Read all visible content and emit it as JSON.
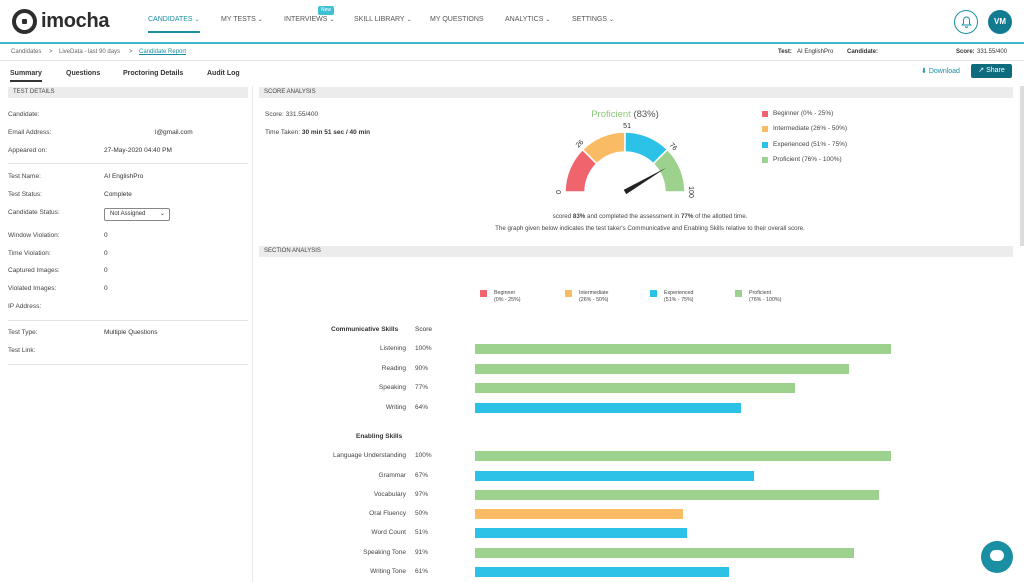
{
  "brand": {
    "name": "imocha"
  },
  "nav": {
    "items": [
      {
        "label": "CANDIDATES",
        "active": true
      },
      {
        "label": "MY TESTS"
      },
      {
        "label": "INTERVIEWS",
        "badge": "New"
      },
      {
        "label": "SKILL LIBRARY"
      },
      {
        "label": "MY QUESTIONS"
      },
      {
        "label": "ANALYTICS"
      },
      {
        "label": "SETTINGS"
      }
    ],
    "chevron": "⌄"
  },
  "user": {
    "initials": "VM"
  },
  "breadcrumb": {
    "items": [
      "Candidates",
      ">",
      "LiveData - last 90 days",
      ">",
      "Candidate Report"
    ]
  },
  "header_info": {
    "test_label": "Test:",
    "test_value": "AI EnglishPro",
    "candidate_label": "Candidate:",
    "score_label": "Score:",
    "score_value": "331.55/400"
  },
  "tabs": [
    "Summary",
    "Questions",
    "Proctoring Details",
    "Audit Log"
  ],
  "actions": {
    "download": "Download",
    "share": "Share"
  },
  "test_details": {
    "heading": "TEST DETAILS",
    "rows": [
      {
        "label": "Candidate:",
        "value": ""
      },
      {
        "label": "Email Address:",
        "value": "l@gmail.com"
      },
      {
        "label": "Appeared on:",
        "value": "27-May-2020 04:40 PM"
      },
      {
        "label": "Test Name:",
        "value": "AI EnglishPro"
      },
      {
        "label": "Test Status:",
        "value": "Complete"
      },
      {
        "label": "Candidate Status:",
        "value": "Not Assigned"
      },
      {
        "label": "Window Violation:",
        "value": "0"
      },
      {
        "label": "Time Violation:",
        "value": "0"
      },
      {
        "label": "Captured Images:",
        "value": "0"
      },
      {
        "label": "Violated Images:",
        "value": "0"
      },
      {
        "label": "IP Address:",
        "value": ""
      },
      {
        "label": "Test Type:",
        "value": "Multiple Questions"
      },
      {
        "label": "Test Link:",
        "value": ""
      }
    ]
  },
  "score_analysis": {
    "heading": "SCORE ANALYSIS",
    "score_label": "Score:",
    "score_value": "331.55/400",
    "time_label": "Time Taken:",
    "time_value": "30 min 51 sec / 40 min",
    "gauge_level": "Proficient",
    "gauge_pct": "(83%)",
    "gauge_value": 83,
    "gauge_ticks": [
      "0",
      "26",
      "51",
      "76",
      "100"
    ],
    "summary_line1_a": "scored",
    "summary_line1_b": "83%",
    "summary_line1_c": "and completed the assessment in",
    "summary_line1_d": "77%",
    "summary_line1_e": "of the allotted time.",
    "summary_line2": "The graph given below indicates the test taker's Communicative and Enabling Skills relative to their overall score.",
    "legend": [
      {
        "label": "Beginner (0% - 25%)",
        "color": "#f0646e"
      },
      {
        "label": "Intermediate (26% - 50%)",
        "color": "#f9bb63"
      },
      {
        "label": "Experienced (51% - 75%)",
        "color": "#2cc2e8"
      },
      {
        "label": "Proficient (76% - 100%)",
        "color": "#9dd18e"
      }
    ]
  },
  "section_analysis": {
    "heading": "SECTION ANALYSIS",
    "legend": [
      {
        "name": "Beginner",
        "range": "(0% - 25%)",
        "color": "#f0646e"
      },
      {
        "name": "Intermediate",
        "range": "(26% - 50%)",
        "color": "#f9bb63"
      },
      {
        "name": "Experienced",
        "range": "(51% - 75%)",
        "color": "#2cc2e8"
      },
      {
        "name": "Proficient",
        "range": "(76% - 100%)",
        "color": "#9dd18e"
      }
    ],
    "groups": [
      {
        "title": "Communicative Skills",
        "score_header": "Score",
        "skills": [
          {
            "name": "Listening",
            "pct": "100%",
            "value": 100,
            "color": "#9dd18e"
          },
          {
            "name": "Reading",
            "pct": "90%",
            "value": 90,
            "color": "#9dd18e"
          },
          {
            "name": "Speaking",
            "pct": "77%",
            "value": 77,
            "color": "#9dd18e"
          },
          {
            "name": "Writing",
            "pct": "64%",
            "value": 64,
            "color": "#2cc2e8"
          }
        ]
      },
      {
        "title": "Enabling Skills",
        "skills": [
          {
            "name": "Language Understanding",
            "pct": "100%",
            "value": 100,
            "color": "#9dd18e"
          },
          {
            "name": "Grammar",
            "pct": "67%",
            "value": 67,
            "color": "#2cc2e8"
          },
          {
            "name": "Vocabulary",
            "pct": "97%",
            "value": 97,
            "color": "#9dd18e"
          },
          {
            "name": "Oral Fluency",
            "pct": "50%",
            "value": 50,
            "color": "#f9bb63"
          },
          {
            "name": "Word Count",
            "pct": "51%",
            "value": 51,
            "color": "#2cc2e8"
          },
          {
            "name": "Speaking Tone",
            "pct": "91%",
            "value": 91,
            "color": "#9dd18e"
          },
          {
            "name": "Writing Tone",
            "pct": "61%",
            "value": 61,
            "color": "#2cc2e8"
          }
        ]
      }
    ]
  },
  "icons": {
    "bell": "bell-icon",
    "download": "download-icon",
    "share": "share-icon",
    "chat": "chat-icon"
  },
  "colors": {
    "accent": "#1a8fa3",
    "share_bg": "#0f6b7e"
  }
}
